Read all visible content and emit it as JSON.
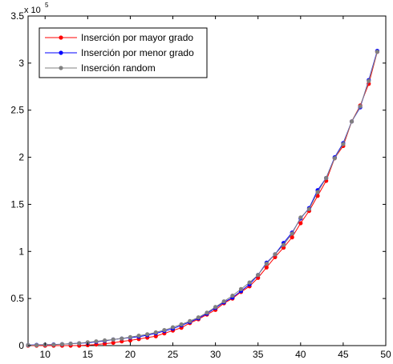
{
  "chart_data": {
    "type": "line",
    "title": "",
    "xlabel": "",
    "ylabel": "",
    "exponent_label": {
      "base": "x 10",
      "power": "5"
    },
    "xlim": [
      8,
      50
    ],
    "ylim": [
      0,
      350000
    ],
    "x_ticks": [
      10,
      15,
      20,
      25,
      30,
      35,
      40,
      45,
      50
    ],
    "y_ticks": [
      0,
      50000,
      100000,
      150000,
      200000,
      250000,
      300000,
      350000
    ],
    "y_tick_labels": [
      "0",
      "0.5",
      "1",
      "1.5",
      "2",
      "2.5",
      "3",
      "3.5"
    ],
    "legend_position": "top-left",
    "x": [
      8,
      9,
      10,
      11,
      12,
      13,
      14,
      15,
      16,
      17,
      18,
      19,
      20,
      21,
      22,
      23,
      24,
      25,
      26,
      27,
      28,
      29,
      30,
      31,
      32,
      33,
      34,
      35,
      36,
      37,
      38,
      39,
      40,
      41,
      42,
      43,
      44,
      45,
      46,
      47,
      48,
      49
    ],
    "series": [
      {
        "name": "Inserción por mayor grado",
        "color": "#ff0000",
        "values": [
          0,
          0,
          0,
          0,
          0,
          0,
          0,
          500,
          1200,
          2000,
          3000,
          4500,
          5500,
          7000,
          8500,
          10000,
          13000,
          16000,
          19000,
          24000,
          28000,
          33000,
          38000,
          45000,
          50000,
          57000,
          63000,
          72000,
          83000,
          94000,
          104000,
          115000,
          130000,
          143000,
          159000,
          175000,
          199000,
          212000,
          238000,
          255000,
          278000,
          312000
        ]
      },
      {
        "name": "Inserción por menor grado",
        "color": "#0000ff",
        "values": [
          500,
          800,
          1000,
          1200,
          1500,
          2000,
          2500,
          3000,
          4000,
          5000,
          6500,
          7500,
          8500,
          9500,
          11000,
          13000,
          15500,
          18000,
          21500,
          25000,
          29000,
          34000,
          40000,
          46000,
          51000,
          58000,
          65000,
          75000,
          88000,
          97000,
          109000,
          120000,
          135000,
          146000,
          165000,
          178000,
          200000,
          215000,
          238000,
          253000,
          282000,
          313000
        ]
      },
      {
        "name": "Inserción random",
        "color": "#808080",
        "values": [
          500,
          500,
          1000,
          1000,
          1500,
          2000,
          2500,
          3500,
          4500,
          5500,
          6500,
          7500,
          9000,
          10500,
          12000,
          14000,
          16500,
          19500,
          22500,
          26000,
          30000,
          35000,
          41000,
          47000,
          53000,
          60000,
          67000,
          75000,
          87000,
          97000,
          107000,
          119000,
          136000,
          145000,
          163000,
          178000,
          199000,
          214000,
          238000,
          254000,
          281000,
          312000
        ]
      }
    ]
  }
}
